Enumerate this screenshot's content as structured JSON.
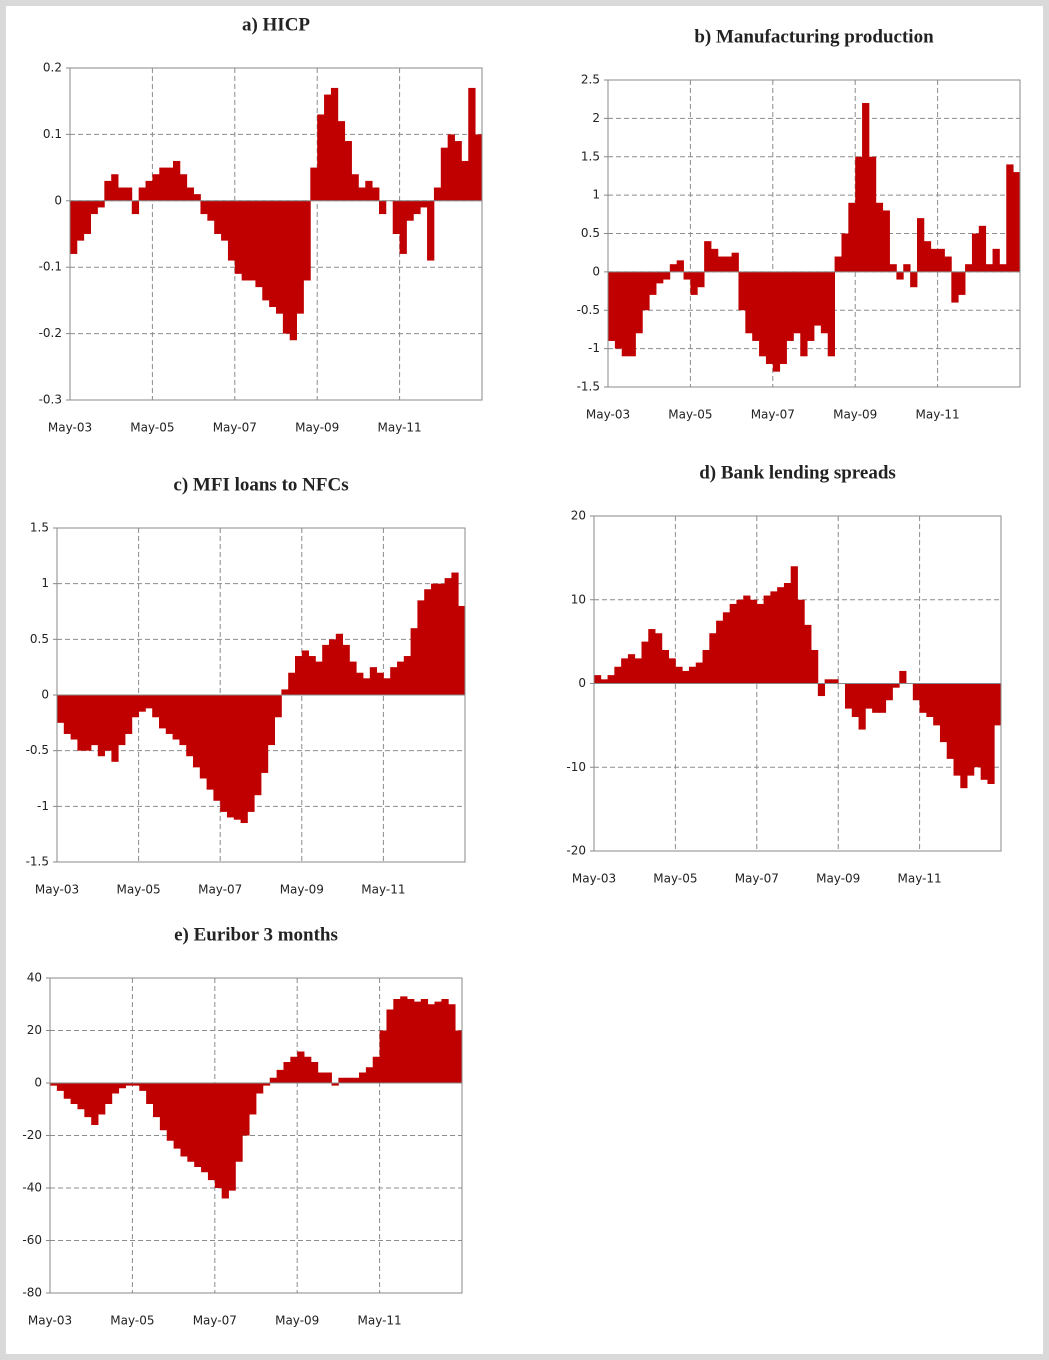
{
  "chart_data": [
    {
      "type": "bar",
      "title": "a) HICP",
      "color": "#c00000",
      "grid": true,
      "categories": [
        "May-03",
        null,
        null,
        null,
        null,
        null,
        null,
        null,
        null,
        null,
        null,
        null,
        "May-05",
        null,
        null,
        null,
        null,
        null,
        null,
        null,
        null,
        null,
        null,
        null,
        "May-07",
        null,
        null,
        null,
        null,
        null,
        null,
        null,
        null,
        null,
        null,
        null,
        "May-09",
        null,
        null,
        null,
        null,
        null,
        null,
        null,
        null,
        null,
        null,
        null,
        "May-11",
        null,
        null,
        null,
        null,
        null,
        null,
        null,
        null,
        null,
        null,
        null
      ],
      "values": [
        -0.08,
        -0.06,
        -0.05,
        -0.02,
        -0.01,
        0.03,
        0.04,
        0.02,
        0.02,
        -0.02,
        0.02,
        0.03,
        0.04,
        0.05,
        0.05,
        0.06,
        0.04,
        0.02,
        0.01,
        -0.02,
        -0.03,
        -0.05,
        -0.06,
        -0.09,
        -0.11,
        -0.12,
        -0.12,
        -0.13,
        -0.15,
        -0.16,
        -0.17,
        -0.2,
        -0.21,
        -0.17,
        -0.12,
        0.05,
        0.13,
        0.16,
        0.17,
        0.12,
        0.09,
        0.04,
        0.02,
        0.03,
        0.02,
        -0.02,
        0,
        -0.05,
        -0.08,
        -0.03,
        -0.02,
        -0.01,
        -0.09,
        0.02,
        0.08,
        0.1,
        0.09,
        0.06,
        0.17,
        0.1
      ],
      "ylim": [
        -0.3,
        0.2
      ],
      "yticks": [
        -0.3,
        -0.2,
        -0.1,
        0,
        0.1,
        0.2
      ]
    },
    {
      "type": "bar",
      "title": "b) Manufacturing production",
      "color": "#c00000",
      "grid": true,
      "categories": [
        "May-03",
        null,
        null,
        null,
        null,
        null,
        null,
        null,
        null,
        null,
        null,
        null,
        "May-05",
        null,
        null,
        null,
        null,
        null,
        null,
        null,
        null,
        null,
        null,
        null,
        "May-07",
        null,
        null,
        null,
        null,
        null,
        null,
        null,
        null,
        null,
        null,
        null,
        "May-09",
        null,
        null,
        null,
        null,
        null,
        null,
        null,
        null,
        null,
        null,
        null,
        "May-11",
        null,
        null,
        null,
        null,
        null,
        null,
        null,
        null,
        null,
        null,
        null
      ],
      "values": [
        -0.9,
        -1,
        -1.1,
        -1.1,
        -0.8,
        -0.5,
        -0.3,
        -0.15,
        -0.1,
        0.1,
        0.15,
        -0.1,
        -0.3,
        -0.2,
        0.4,
        0.3,
        0.2,
        0.2,
        0.25,
        -0.5,
        -0.8,
        -0.9,
        -1.1,
        -1.2,
        -1.3,
        -1.2,
        -0.9,
        -0.8,
        -1.1,
        -0.9,
        -0.7,
        -0.8,
        -1.1,
        0.2,
        0.5,
        0.9,
        1.5,
        2.2,
        1.5,
        0.9,
        0.8,
        0.1,
        -0.1,
        0.1,
        -0.2,
        0.7,
        0.4,
        0.3,
        0.3,
        0.2,
        -0.4,
        -0.3,
        0.1,
        0.5,
        0.6,
        0.1,
        0.3,
        0.1,
        1.4,
        1.3
      ],
      "ylim": [
        -1.5,
        2.5
      ],
      "yticks": [
        -1.5,
        -1,
        -0.5,
        0,
        0.5,
        1,
        1.5,
        2,
        2.5
      ]
    },
    {
      "type": "bar",
      "title": "c) MFI loans to NFCs",
      "color": "#c00000",
      "grid": true,
      "categories": [
        "May-03",
        null,
        null,
        null,
        null,
        null,
        null,
        null,
        null,
        null,
        null,
        null,
        "May-05",
        null,
        null,
        null,
        null,
        null,
        null,
        null,
        null,
        null,
        null,
        null,
        "May-07",
        null,
        null,
        null,
        null,
        null,
        null,
        null,
        null,
        null,
        null,
        null,
        "May-09",
        null,
        null,
        null,
        null,
        null,
        null,
        null,
        null,
        null,
        null,
        null,
        "May-11",
        null,
        null,
        null,
        null,
        null,
        null,
        null,
        null,
        null,
        null,
        null
      ],
      "values": [
        -0.25,
        -0.35,
        -0.4,
        -0.5,
        -0.5,
        -0.45,
        -0.55,
        -0.5,
        -0.6,
        -0.45,
        -0.35,
        -0.2,
        -0.15,
        -0.12,
        -0.2,
        -0.3,
        -0.35,
        -0.4,
        -0.45,
        -0.55,
        -0.65,
        -0.75,
        -0.85,
        -0.95,
        -1.05,
        -1.1,
        -1.12,
        -1.15,
        -1.05,
        -0.9,
        -0.7,
        -0.45,
        -0.2,
        0.05,
        0.2,
        0.35,
        0.4,
        0.35,
        0.3,
        0.45,
        0.5,
        0.55,
        0.45,
        0.3,
        0.2,
        0.15,
        0.25,
        0.2,
        0.15,
        0.25,
        0.3,
        0.35,
        0.6,
        0.85,
        0.95,
        1,
        1,
        1.05,
        1.1,
        0.8
      ],
      "ylim": [
        -1.5,
        1.5
      ],
      "yticks": [
        -1.5,
        -1,
        -0.5,
        0,
        0.5,
        1,
        1.5
      ]
    },
    {
      "type": "bar",
      "title": "d) Bank lending spreads",
      "color": "#c00000",
      "grid": true,
      "categories": [
        "May-03",
        null,
        null,
        null,
        null,
        null,
        null,
        null,
        null,
        null,
        null,
        null,
        "May-05",
        null,
        null,
        null,
        null,
        null,
        null,
        null,
        null,
        null,
        null,
        null,
        "May-07",
        null,
        null,
        null,
        null,
        null,
        null,
        null,
        null,
        null,
        null,
        null,
        "May-09",
        null,
        null,
        null,
        null,
        null,
        null,
        null,
        null,
        null,
        null,
        null,
        "May-11",
        null,
        null,
        null,
        null,
        null,
        null,
        null,
        null,
        null,
        null,
        null
      ],
      "values": [
        1,
        0.5,
        1,
        2,
        3,
        3.5,
        3,
        5,
        6.5,
        6,
        4,
        3,
        2,
        1.5,
        2,
        2.5,
        4,
        6,
        7.5,
        8.5,
        9.5,
        10,
        10.5,
        10,
        9.5,
        10.5,
        11,
        11.5,
        12,
        14,
        10,
        7,
        4,
        -1.5,
        0.5,
        0.5,
        0,
        -3,
        -4,
        -5.5,
        -3,
        -3.5,
        -3.5,
        -2,
        -0.5,
        1.5,
        0,
        -2,
        -3.5,
        -4,
        -5,
        -7,
        -9,
        -11,
        -12.5,
        -11,
        -10,
        -11.5,
        -12,
        -5
      ],
      "ylim": [
        -20,
        20
      ],
      "yticks": [
        -20,
        -10,
        0,
        10,
        20
      ]
    },
    {
      "type": "bar",
      "title": "e) Euribor 3 months",
      "color": "#c00000",
      "grid": true,
      "categories": [
        "May-03",
        null,
        null,
        null,
        null,
        null,
        null,
        null,
        null,
        null,
        null,
        null,
        "May-05",
        null,
        null,
        null,
        null,
        null,
        null,
        null,
        null,
        null,
        null,
        null,
        "May-07",
        null,
        null,
        null,
        null,
        null,
        null,
        null,
        null,
        null,
        null,
        null,
        "May-09",
        null,
        null,
        null,
        null,
        null,
        null,
        null,
        null,
        null,
        null,
        null,
        "May-11",
        null,
        null,
        null,
        null,
        null,
        null,
        null,
        null,
        null,
        null,
        null
      ],
      "values": [
        -1,
        -3,
        -6,
        -8,
        -10,
        -13,
        -16,
        -12,
        -8,
        -4,
        -2,
        -1,
        -1,
        -3,
        -8,
        -13,
        -18,
        -22,
        -25,
        -28,
        -30,
        -32,
        -34,
        -37,
        -40,
        -44,
        -41,
        -30,
        -20,
        -12,
        -4,
        -1,
        2,
        5,
        8,
        10,
        12,
        10,
        8,
        4,
        4,
        -1,
        2,
        2,
        2,
        4,
        6,
        10,
        20,
        28,
        32,
        33,
        32,
        31,
        32,
        30,
        31,
        32,
        30,
        20
      ],
      "ylim": [
        -80,
        40
      ],
      "yticks": [
        -80,
        -60,
        -40,
        -20,
        0,
        20,
        40
      ]
    }
  ]
}
